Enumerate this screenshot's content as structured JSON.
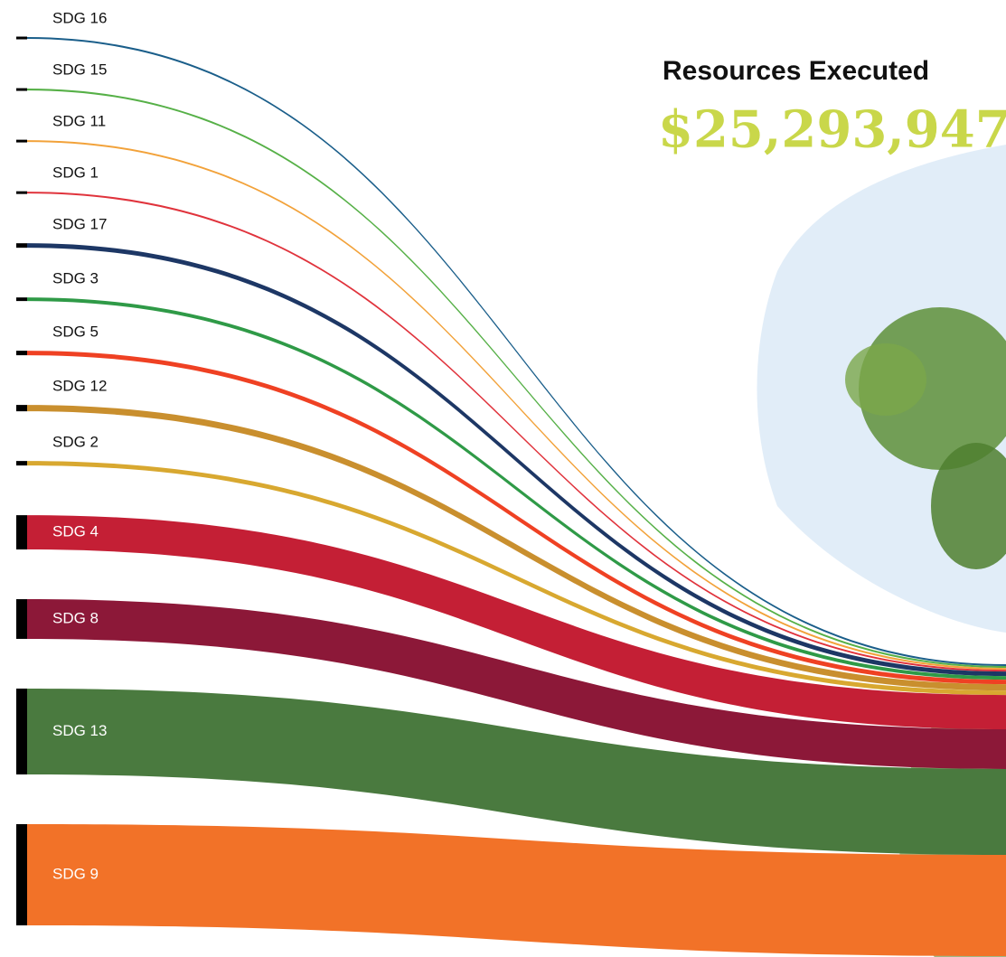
{
  "chart_data": {
    "type": "sankey",
    "title": "Resources Executed",
    "subtitle": "$25,293,947",
    "categories": [
      "SDG 16",
      "SDG 15",
      "SDG 11",
      "SDG 1",
      "SDG 17",
      "SDG 3",
      "SDG 5",
      "SDG 12",
      "SDG 2",
      "SDG 4",
      "SDG 8",
      "SDG 13",
      "SDG 9"
    ],
    "values": [
      160000,
      160000,
      160000,
      160000,
      390000,
      310000,
      390000,
      550000,
      390000,
      2970000,
      3440000,
      7440000,
      8770000
    ],
    "colors": [
      "#1a5e8a",
      "#56b047",
      "#f2a23a",
      "#e0333c",
      "#1d3765",
      "#2f9a47",
      "#ef4123",
      "#c98f2e",
      "#d8a830",
      "#c41f35",
      "#8c1838",
      "#4a7a3f",
      "#f27228"
    ]
  }
}
